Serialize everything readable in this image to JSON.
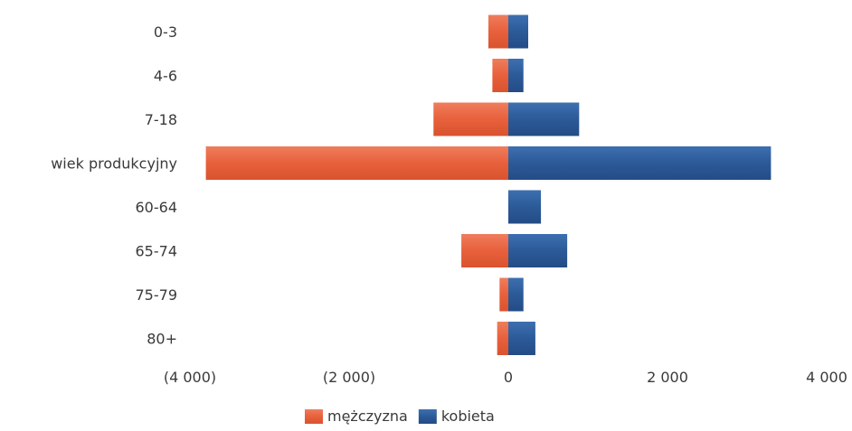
{
  "chart_data": {
    "type": "bar",
    "orientation": "horizontal",
    "layout": "population-pyramid",
    "categories": [
      "0-3",
      "4-6",
      "7-18",
      "wiek produkcyjny",
      "60-64",
      "65-74",
      "75-79",
      "80+"
    ],
    "series": [
      {
        "name": "mężczyzna",
        "color": "#e8603c",
        "values": [
          -250,
          -200,
          -940,
          -3800,
          0,
          -590,
          -110,
          -140
        ]
      },
      {
        "name": "kobieta",
        "color": "#2c5a98",
        "values": [
          250,
          190,
          890,
          3300,
          410,
          740,
          190,
          340
        ]
      }
    ],
    "xlim": [
      -4000,
      4000
    ],
    "x_ticks": [
      -4000,
      -2000,
      0,
      2000,
      4000
    ],
    "x_tick_labels": [
      "(4 000)",
      "(2 000)",
      "0",
      "2 000",
      "4 000"
    ],
    "grid": false,
    "legend_position": "bottom-center"
  }
}
